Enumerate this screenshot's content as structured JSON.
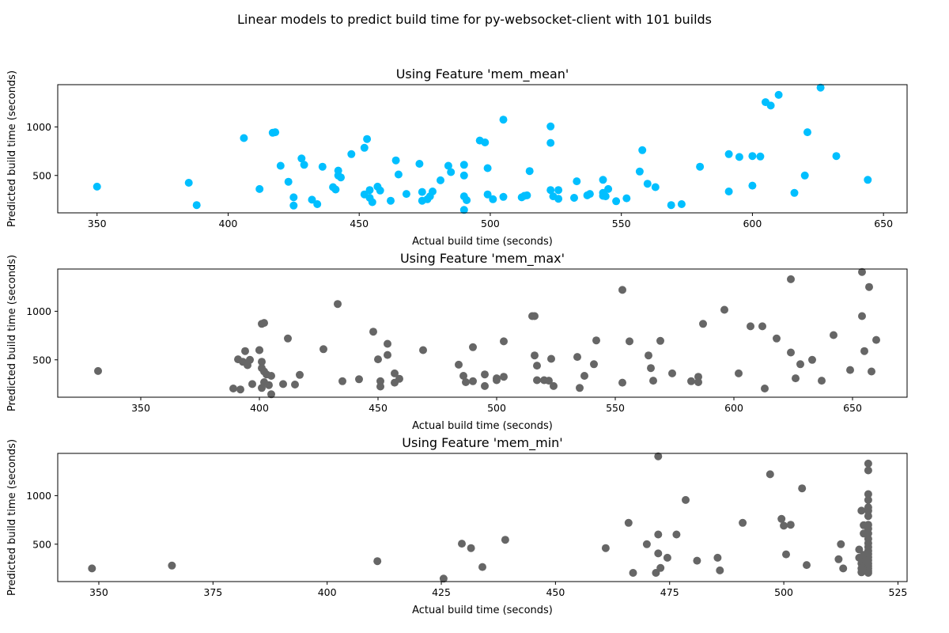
{
  "figure": {
    "suptitle": "Linear models to predict build time for py-websocket-client with 101 builds"
  },
  "chart_data": [
    {
      "type": "scatter",
      "title": "Using Feature 'mem_mean'",
      "xlabel": "Actual build time (seconds)",
      "ylabel": "Predicted build time (seconds)",
      "xlim": [
        335,
        659
      ],
      "ylim": [
        115,
        1435
      ],
      "xticks": [
        350,
        400,
        450,
        500,
        550,
        600,
        650
      ],
      "yticks": [
        500,
        1000
      ],
      "color": "#00bfff",
      "points": [
        [
          350,
          385
        ],
        [
          385,
          425
        ],
        [
          388,
          195
        ],
        [
          406,
          885
        ],
        [
          412,
          360
        ],
        [
          417,
          940
        ],
        [
          418,
          945
        ],
        [
          420,
          600
        ],
        [
          423,
          435
        ],
        [
          425,
          275
        ],
        [
          425,
          190
        ],
        [
          428,
          675
        ],
        [
          429,
          610
        ],
        [
          432,
          250
        ],
        [
          434,
          205
        ],
        [
          436,
          590
        ],
        [
          440,
          380
        ],
        [
          441,
          355
        ],
        [
          442,
          550
        ],
        [
          442,
          500
        ],
        [
          443,
          480
        ],
        [
          447,
          720
        ],
        [
          452,
          785
        ],
        [
          452,
          305
        ],
        [
          453,
          875
        ],
        [
          454,
          270
        ],
        [
          454,
          350
        ],
        [
          455,
          225
        ],
        [
          457,
          385
        ],
        [
          458,
          345
        ],
        [
          462,
          240
        ],
        [
          464,
          655
        ],
        [
          465,
          510
        ],
        [
          468,
          310
        ],
        [
          473,
          620
        ],
        [
          474,
          240
        ],
        [
          474,
          330
        ],
        [
          476,
          255
        ],
        [
          477,
          285
        ],
        [
          478,
          335
        ],
        [
          481,
          450
        ],
        [
          484,
          600
        ],
        [
          485,
          535
        ],
        [
          490,
          610
        ],
        [
          490,
          500
        ],
        [
          490,
          285
        ],
        [
          490,
          145
        ],
        [
          491,
          245
        ],
        [
          496,
          860
        ],
        [
          498,
          840
        ],
        [
          499,
          575
        ],
        [
          499,
          305
        ],
        [
          501,
          255
        ],
        [
          505,
          1075
        ],
        [
          505,
          280
        ],
        [
          512,
          275
        ],
        [
          513,
          290
        ],
        [
          514,
          295
        ],
        [
          515,
          545
        ],
        [
          523,
          835
        ],
        [
          523,
          1005
        ],
        [
          523,
          350
        ],
        [
          524,
          285
        ],
        [
          526,
          350
        ],
        [
          526,
          260
        ],
        [
          532,
          270
        ],
        [
          533,
          440
        ],
        [
          537,
          295
        ],
        [
          538,
          310
        ],
        [
          543,
          455
        ],
        [
          543,
          290
        ],
        [
          543,
          320
        ],
        [
          544,
          285
        ],
        [
          545,
          360
        ],
        [
          548,
          235
        ],
        [
          552,
          265
        ],
        [
          557,
          540
        ],
        [
          558,
          760
        ],
        [
          560,
          415
        ],
        [
          563,
          380
        ],
        [
          569,
          195
        ],
        [
          573,
          205
        ],
        [
          580,
          590
        ],
        [
          591,
          720
        ],
        [
          591,
          335
        ],
        [
          595,
          690
        ],
        [
          600,
          700
        ],
        [
          600,
          395
        ],
        [
          603,
          695
        ],
        [
          605,
          1255
        ],
        [
          607,
          1220
        ],
        [
          610,
          1330
        ],
        [
          616,
          320
        ],
        [
          620,
          500
        ],
        [
          621,
          945
        ],
        [
          626,
          1405
        ],
        [
          632,
          700
        ],
        [
          644,
          455
        ]
      ]
    },
    {
      "type": "scatter",
      "title": "Using Feature 'mem_max'",
      "xlabel": "Actual build time (seconds)",
      "ylabel": "Predicted build time (seconds)",
      "xlim": [
        315,
        673
      ],
      "ylim": [
        115,
        1435
      ],
      "xticks": [
        350,
        400,
        450,
        500,
        550,
        600,
        650
      ],
      "yticks": [
        500,
        1000
      ],
      "color": "#666666",
      "points": [
        [
          332,
          385
        ],
        [
          389,
          205
        ],
        [
          391,
          505
        ],
        [
          392,
          195
        ],
        [
          393,
          480
        ],
        [
          394,
          590
        ],
        [
          395,
          445
        ],
        [
          396,
          500
        ],
        [
          397,
          250
        ],
        [
          400,
          600
        ],
        [
          400,
          600
        ],
        [
          401,
          870
        ],
        [
          401,
          415
        ],
        [
          401,
          480
        ],
        [
          401,
          210
        ],
        [
          402,
          880
        ],
        [
          402,
          380
        ],
        [
          402,
          270
        ],
        [
          403,
          350
        ],
        [
          404,
          240
        ],
        [
          405,
          145
        ],
        [
          405,
          335
        ],
        [
          410,
          250
        ],
        [
          412,
          720
        ],
        [
          415,
          245
        ],
        [
          417,
          345
        ],
        [
          427,
          610
        ],
        [
          433,
          1075
        ],
        [
          435,
          280
        ],
        [
          442,
          300
        ],
        [
          448,
          790
        ],
        [
          450,
          505
        ],
        [
          451,
          225
        ],
        [
          451,
          280
        ],
        [
          454,
          665
        ],
        [
          454,
          550
        ],
        [
          457,
          265
        ],
        [
          457,
          360
        ],
        [
          459,
          305
        ],
        [
          469,
          600
        ],
        [
          484,
          450
        ],
        [
          486,
          335
        ],
        [
          487,
          270
        ],
        [
          490,
          630
        ],
        [
          490,
          280
        ],
        [
          495,
          350
        ],
        [
          495,
          230
        ],
        [
          500,
          310
        ],
        [
          500,
          290
        ],
        [
          503,
          325
        ],
        [
          503,
          690
        ],
        [
          515,
          950
        ],
        [
          516,
          950
        ],
        [
          516,
          545
        ],
        [
          517,
          440
        ],
        [
          517,
          290
        ],
        [
          520,
          290
        ],
        [
          522,
          285
        ],
        [
          523,
          510
        ],
        [
          524,
          230
        ],
        [
          534,
          530
        ],
        [
          535,
          210
        ],
        [
          537,
          335
        ],
        [
          541,
          455
        ],
        [
          542,
          700
        ],
        [
          553,
          1220
        ],
        [
          553,
          265
        ],
        [
          556,
          690
        ],
        [
          564,
          545
        ],
        [
          565,
          415
        ],
        [
          566,
          285
        ],
        [
          569,
          695
        ],
        [
          574,
          360
        ],
        [
          582,
          280
        ],
        [
          585,
          325
        ],
        [
          585,
          270
        ],
        [
          587,
          870
        ],
        [
          596,
          1015
        ],
        [
          602,
          360
        ],
        [
          607,
          845
        ],
        [
          612,
          845
        ],
        [
          613,
          205
        ],
        [
          618,
          720
        ],
        [
          624,
          575
        ],
        [
          624,
          1330
        ],
        [
          626,
          310
        ],
        [
          628,
          455
        ],
        [
          633,
          500
        ],
        [
          637,
          285
        ],
        [
          642,
          755
        ],
        [
          649,
          395
        ],
        [
          654,
          1405
        ],
        [
          654,
          950
        ],
        [
          655,
          590
        ],
        [
          657,
          1250
        ],
        [
          658,
          380
        ],
        [
          660,
          705
        ]
      ]
    },
    {
      "type": "scatter",
      "title": "Using Feature 'mem_min'",
      "xlabel": "Actual build time (seconds)",
      "ylabel": "Predicted build time (seconds)",
      "xlim": [
        341,
        527
      ],
      "ylim": [
        115,
        1435
      ],
      "xticks": [
        350,
        375,
        400,
        425,
        450,
        475,
        500,
        525
      ],
      "yticks": [
        500,
        1000
      ],
      "color": "#666666",
      "points": [
        [
          348.5,
          250
        ],
        [
          366,
          280
        ],
        [
          411,
          325
        ],
        [
          425.5,
          145
        ],
        [
          429.5,
          505
        ],
        [
          431.5,
          460
        ],
        [
          434,
          265
        ],
        [
          439,
          545
        ],
        [
          461,
          460
        ],
        [
          466,
          720
        ],
        [
          467,
          205
        ],
        [
          470,
          500
        ],
        [
          472,
          205
        ],
        [
          472.5,
          600
        ],
        [
          472.5,
          405
        ],
        [
          473,
          255
        ],
        [
          472.5,
          1405
        ],
        [
          474.5,
          360
        ],
        [
          476.5,
          600
        ],
        [
          478.5,
          955
        ],
        [
          481,
          330
        ],
        [
          485.5,
          360
        ],
        [
          486,
          230
        ],
        [
          491,
          720
        ],
        [
          497,
          1220
        ],
        [
          499.5,
          760
        ],
        [
          500,
          690
        ],
        [
          500.5,
          395
        ],
        [
          501.5,
          700
        ],
        [
          504,
          1075
        ],
        [
          505,
          285
        ],
        [
          512,
          345
        ],
        [
          512.5,
          500
        ],
        [
          513,
          250
        ],
        [
          516.5,
          445
        ],
        [
          516.5,
          360
        ],
        [
          517,
          300
        ],
        [
          517,
          250
        ],
        [
          517,
          210
        ],
        [
          517,
          845
        ],
        [
          517.5,
          610
        ],
        [
          517.5,
          695
        ],
        [
          517.5,
          390
        ],
        [
          518,
          330
        ],
        [
          518,
          230
        ],
        [
          518,
          280
        ],
        [
          518.5,
          1330
        ],
        [
          518.5,
          1260
        ],
        [
          518.5,
          1015
        ],
        [
          518.5,
          955
        ],
        [
          518.5,
          880
        ],
        [
          518.5,
          845
        ],
        [
          518.5,
          790
        ],
        [
          518.5,
          700
        ],
        [
          518.5,
          660
        ],
        [
          518.5,
          610
        ],
        [
          518.5,
          555
        ],
        [
          518.5,
          510
        ],
        [
          518.5,
          470
        ],
        [
          518.5,
          430
        ],
        [
          518.5,
          400
        ],
        [
          518.5,
          365
        ],
        [
          518.5,
          335
        ],
        [
          518.5,
          300
        ],
        [
          518.5,
          275
        ],
        [
          518.5,
          250
        ],
        [
          518.5,
          225
        ],
        [
          518.5,
          205
        ]
      ]
    }
  ]
}
